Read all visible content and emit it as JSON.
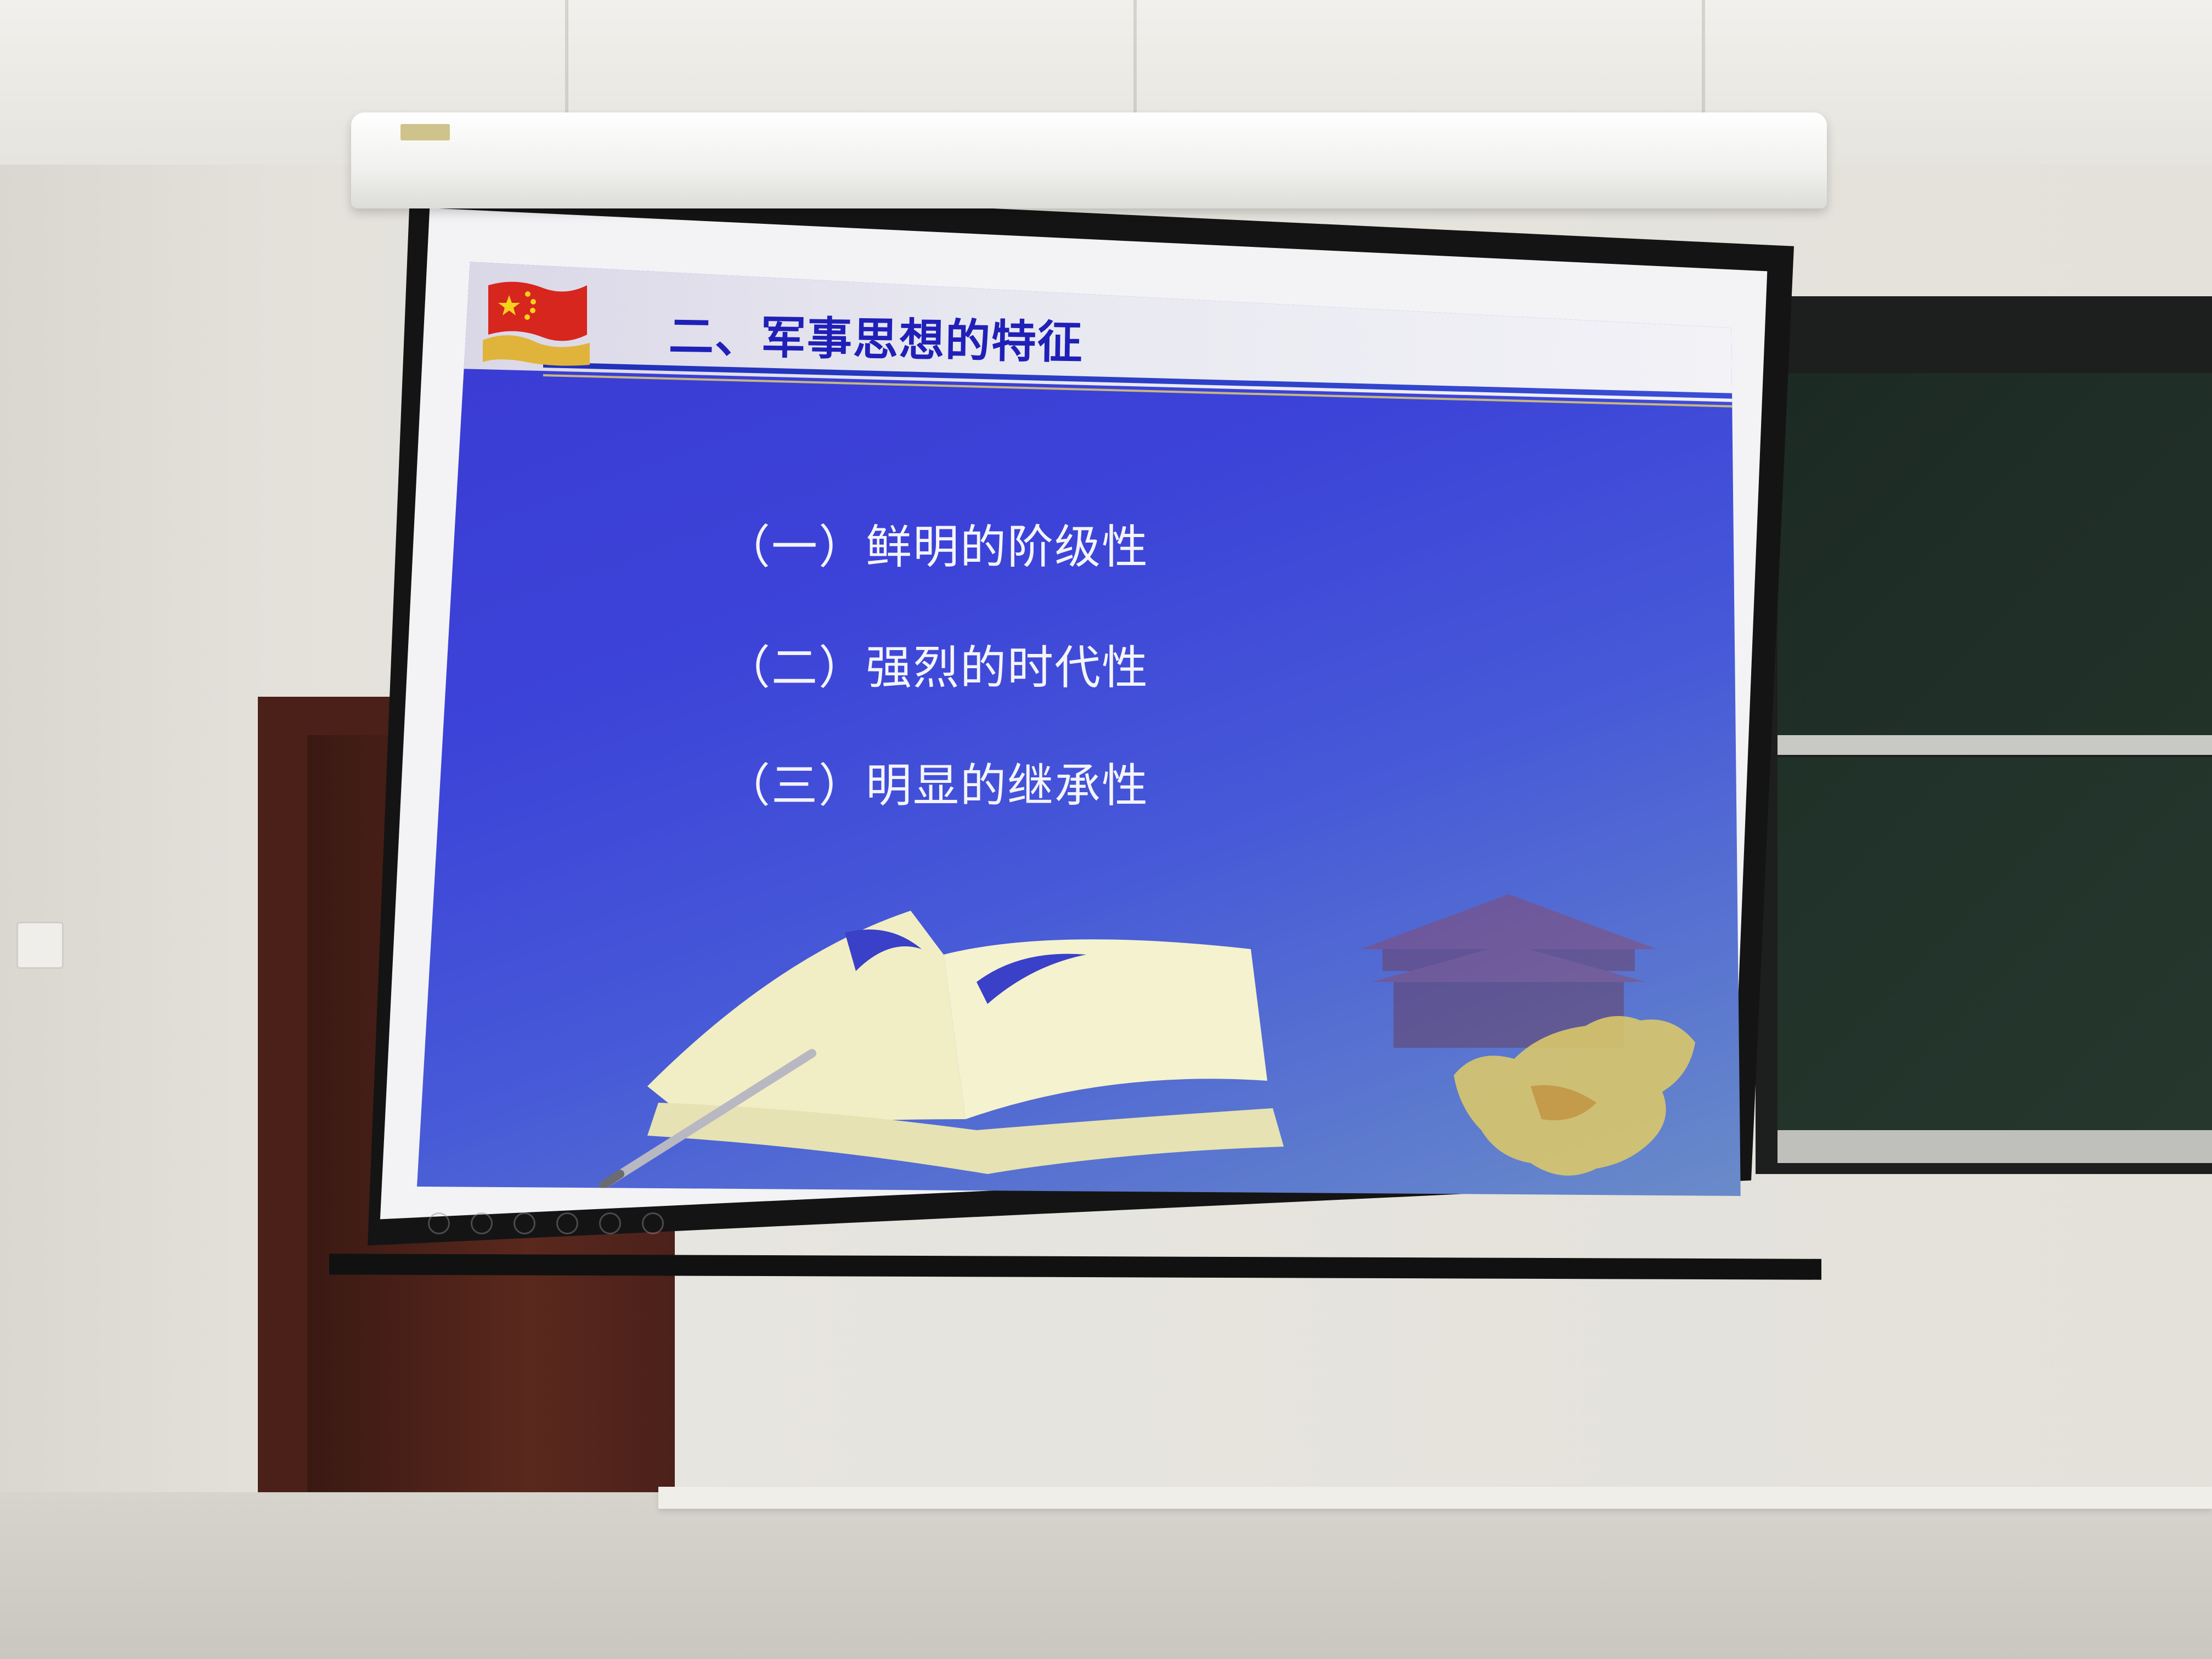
{
  "slide": {
    "title": "二、军事思想的特征",
    "bullets": [
      "（一）鲜明的阶级性",
      "（二）强烈的时代性",
      "（三）明显的继承性"
    ]
  },
  "colors": {
    "slide_background": "#3c43d8",
    "title_text": "#2020b8",
    "bullet_text": "#f4f4fb",
    "header_band": "#e7e7f0",
    "flag_red": "#d7261e",
    "flag_star": "#f7d21c"
  },
  "icons": {
    "flag": "chinese-flag-icon",
    "book": "open-book-illustration",
    "pencil": "pencil-illustration",
    "map": "china-map-illustration"
  }
}
